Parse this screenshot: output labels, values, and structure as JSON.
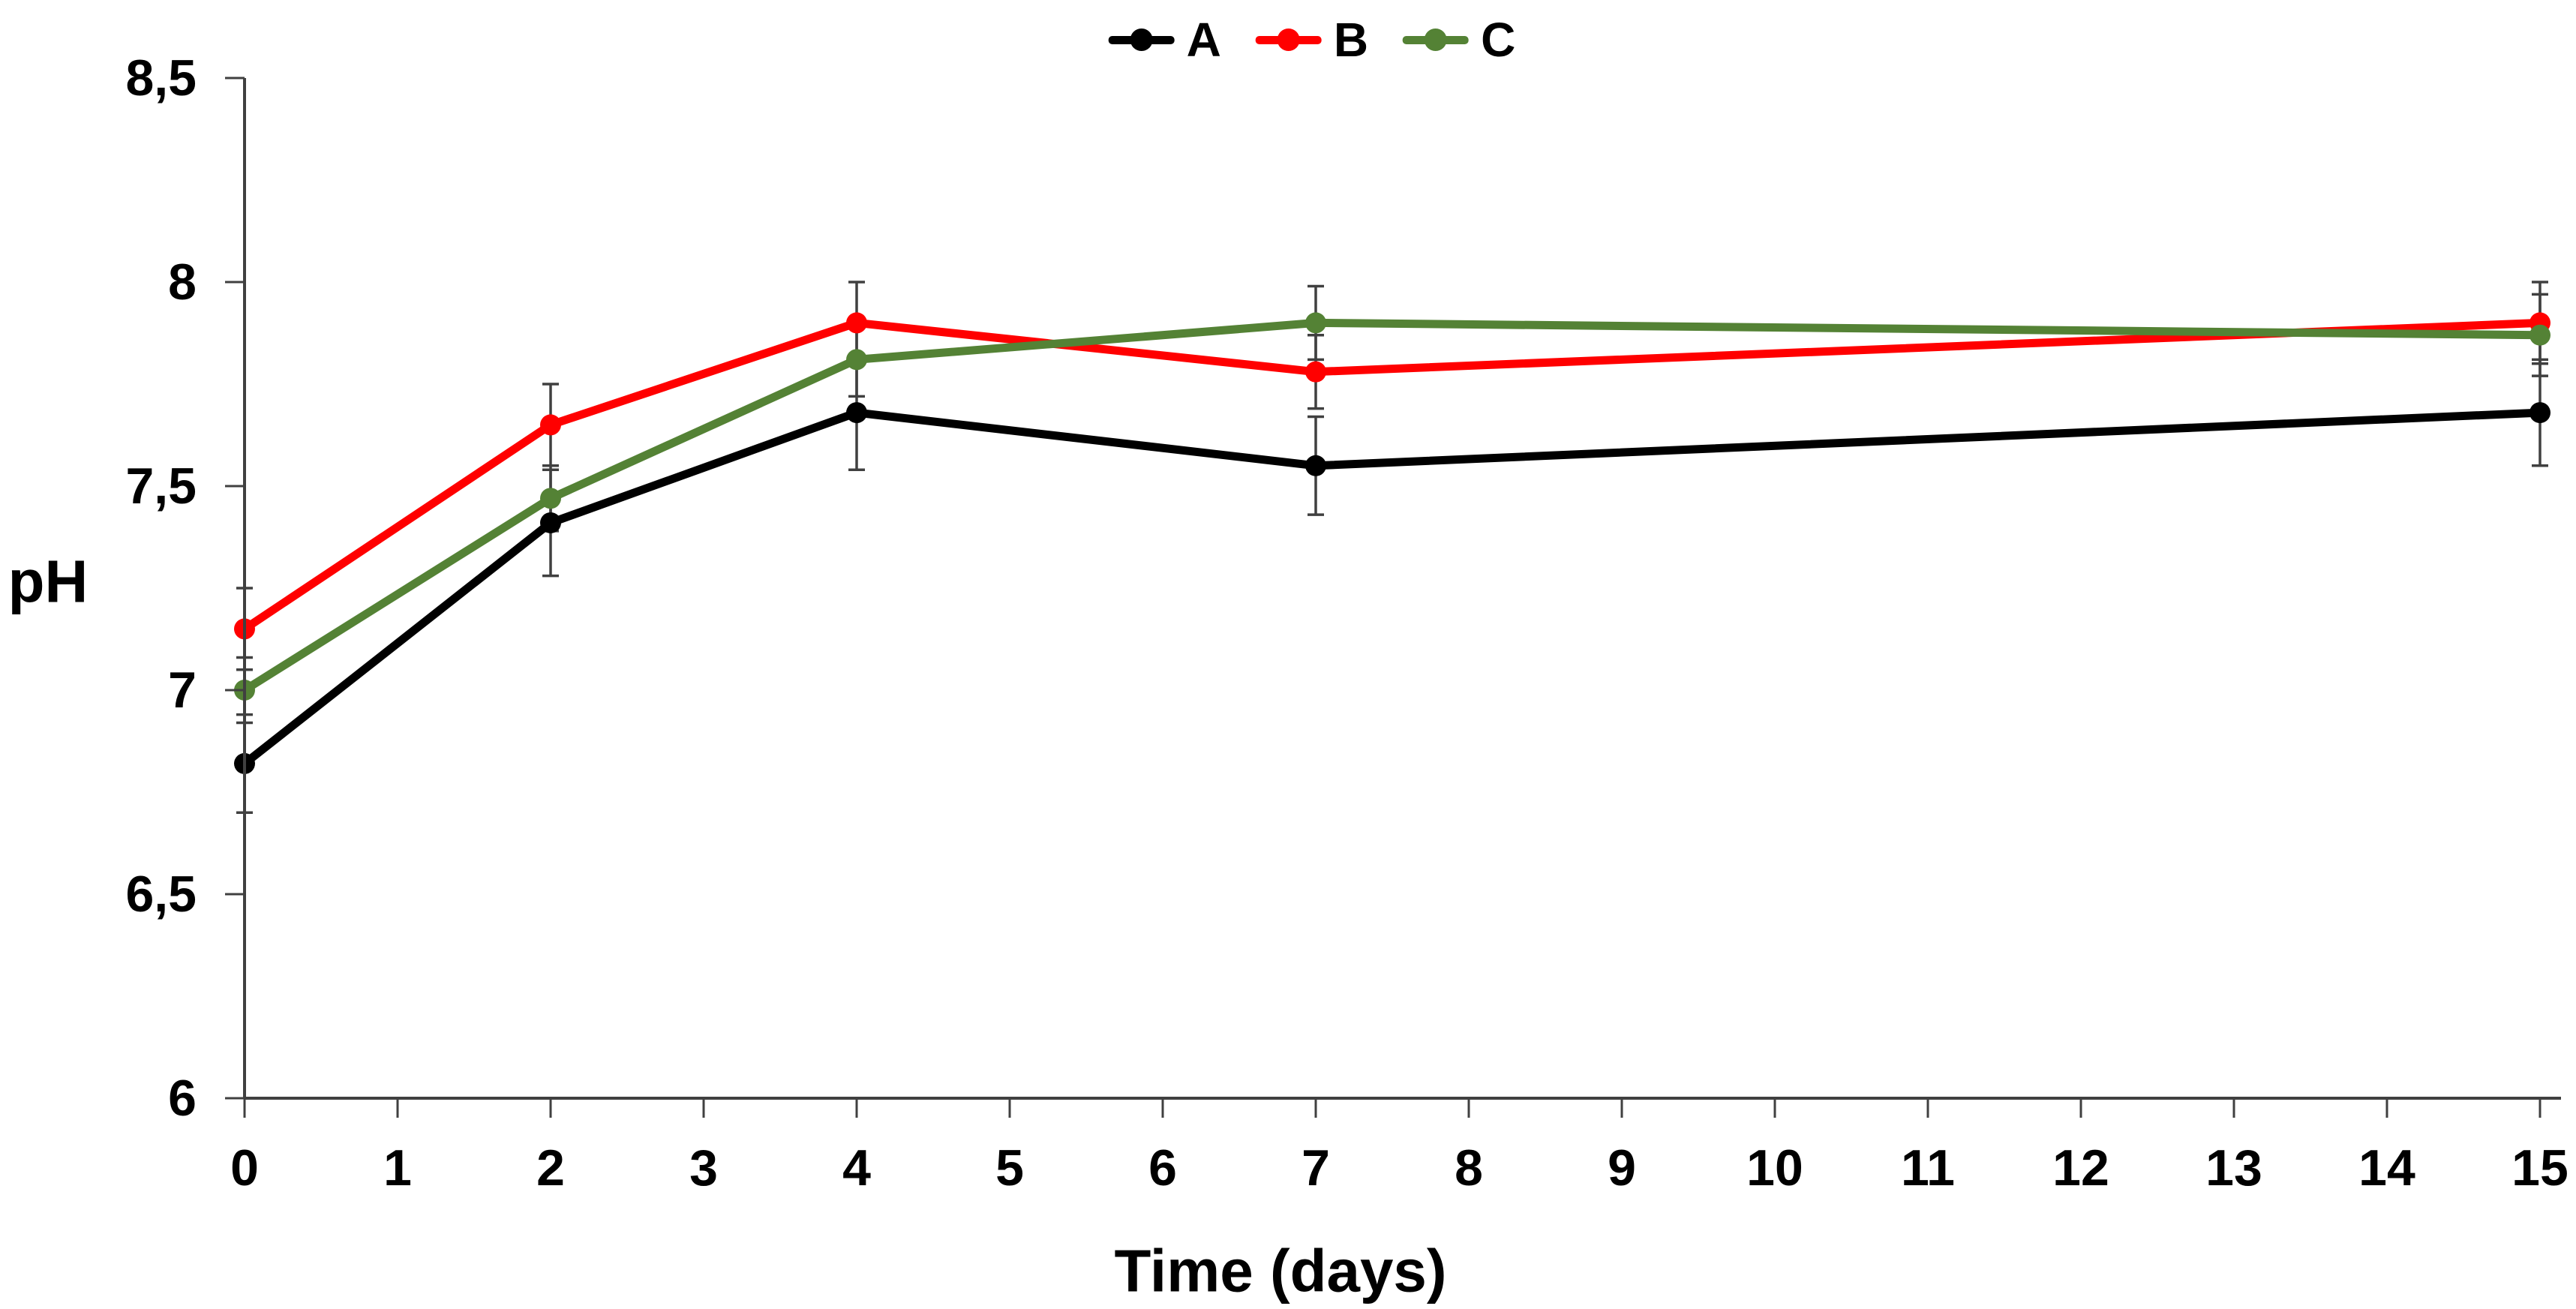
{
  "legend": {
    "items": [
      {
        "label": "A",
        "color": "#000000"
      },
      {
        "label": "B",
        "color": "#FF0000"
      },
      {
        "label": "C",
        "color": "#548235"
      }
    ]
  },
  "axes": {
    "y_title": "pH",
    "x_title": "Time (days)",
    "y_tick_labels": [
      "6",
      "6,5",
      "7",
      "7,5",
      "8",
      "8,5"
    ],
    "x_tick_labels": [
      "0",
      "1",
      "2",
      "3",
      "4",
      "5",
      "6",
      "7",
      "8",
      "9",
      "10",
      "11",
      "12",
      "13",
      "14",
      "15"
    ]
  },
  "chart_data": {
    "type": "line",
    "x": [
      0,
      2,
      4,
      7,
      15
    ],
    "series": [
      {
        "name": "A",
        "color": "#000000",
        "values": [
          6.82,
          7.41,
          7.68,
          7.55,
          7.68
        ],
        "errors": [
          0.12,
          0.13,
          0.14,
          0.12,
          0.13
        ]
      },
      {
        "name": "B",
        "color": "#FF0000",
        "values": [
          7.15,
          7.65,
          7.9,
          7.78,
          7.9
        ],
        "errors": [
          0.1,
          0.1,
          0.1,
          0.09,
          0.1
        ]
      },
      {
        "name": "C",
        "color": "#548235",
        "values": [
          7.0,
          7.47,
          7.81,
          7.9,
          7.87
        ],
        "errors": [
          0.08,
          0.08,
          0.09,
          0.09,
          0.1
        ]
      }
    ],
    "title": "",
    "xlabel": "Time (days)",
    "ylabel": "pH",
    "xlim": [
      0,
      15
    ],
    "ylim": [
      6,
      8.5
    ],
    "x_tick_step": 1,
    "y_tick_step": 0.5,
    "decimal_separator": ",",
    "grid": false,
    "legend_position": "top-center",
    "marker": "circle",
    "error_bars": true,
    "axis_color": "#404040",
    "error_bar_color": "#404040",
    "background": "#ffffff"
  }
}
